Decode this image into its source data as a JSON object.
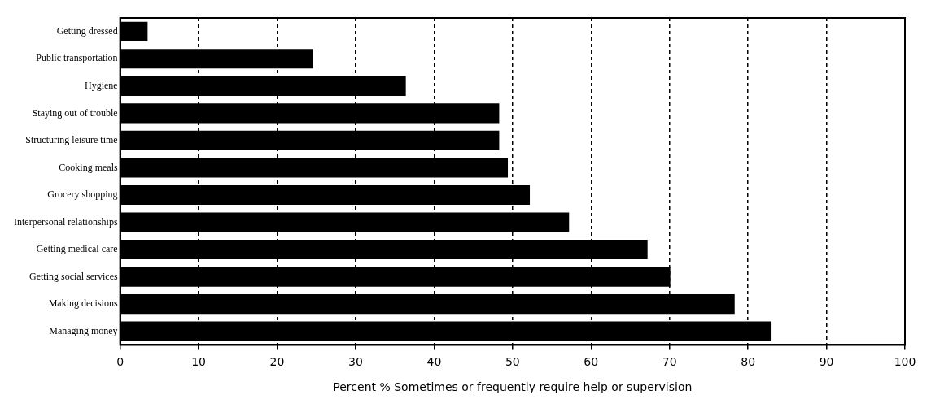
{
  "chart_data": {
    "type": "bar",
    "orientation": "horizontal",
    "xlabel": "Percent % Sometimes or frequently require help or supervision",
    "categories": [
      "Getting dressed",
      "Public transportation",
      "Hygiene",
      "Staying out of trouble",
      "Structuring leisure time",
      "Cooking meals",
      "Grocery shopping",
      "Interpersonal relationships",
      "Getting medical care",
      "Getting social services",
      "Making decisions",
      "Managing money"
    ],
    "values": [
      3.5,
      24.6,
      36.4,
      48.3,
      48.3,
      49.4,
      52.2,
      57.2,
      67.2,
      70.1,
      78.3,
      83
    ],
    "color": "#000000",
    "xlim": [
      0,
      100
    ],
    "xticks": [
      0,
      10,
      20,
      30,
      40,
      50,
      60,
      70,
      80,
      90,
      100
    ],
    "grid": "x",
    "line_style": "dashed"
  }
}
